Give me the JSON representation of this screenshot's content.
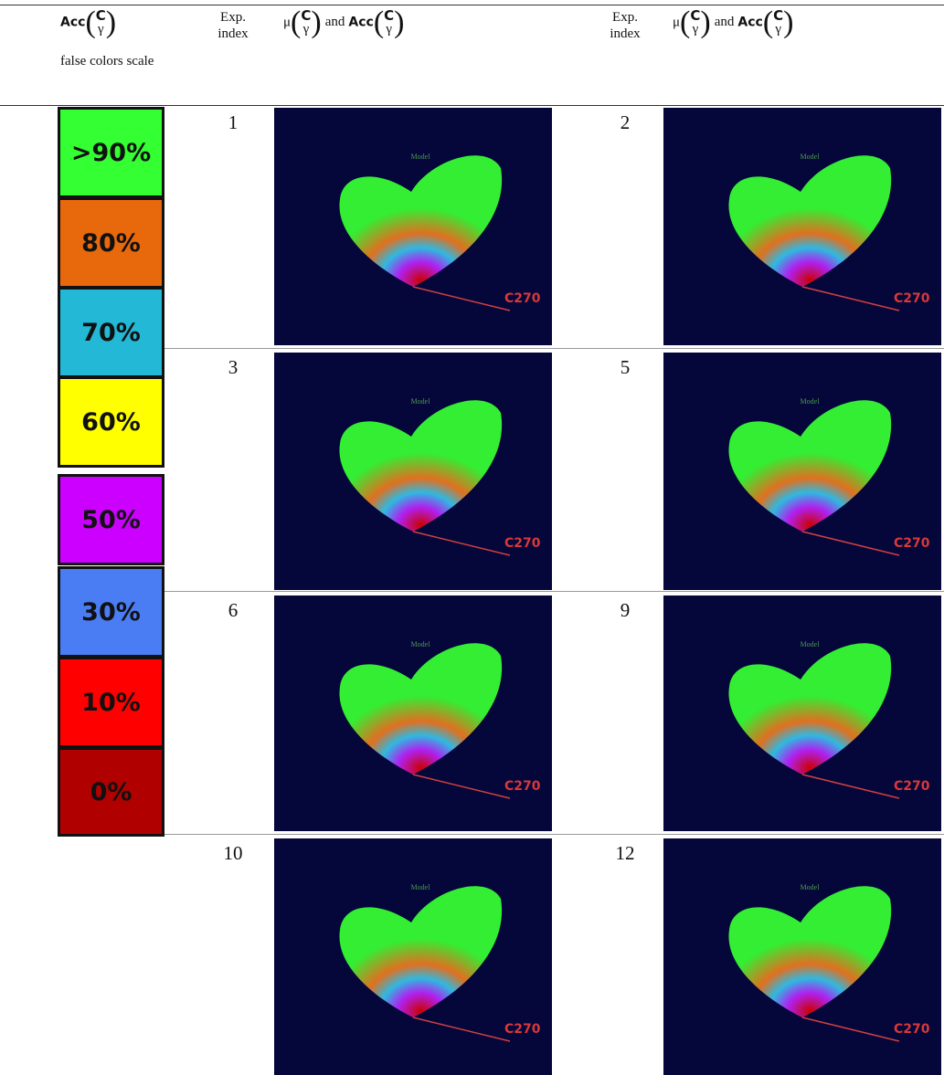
{
  "header": {
    "scale": {
      "acc": "Acc",
      "c": "C",
      "gamma": "γ",
      "caption": "false colors scale"
    },
    "columns": [
      {
        "index": "Exp. index",
        "mu": "μ",
        "and": "and",
        "acc": "Acc",
        "c": "C",
        "gamma": "γ"
      },
      {
        "index": "Exp. index",
        "mu": "μ",
        "and": "and",
        "acc": "Acc",
        "c": "C",
        "gamma": "γ"
      }
    ]
  },
  "scale": [
    {
      "label": ">90%",
      "color": "#33ff33"
    },
    {
      "label": "80%",
      "color": "#e8680c"
    },
    {
      "label": "70%",
      "color": "#22b8d6"
    },
    {
      "label": "60%",
      "color": "#ffff00"
    },
    {
      "label": "50%",
      "color": "#cc00ff"
    },
    {
      "label": "30%",
      "color": "#4a7cf4"
    },
    {
      "label": "10%",
      "color": "#ff0000"
    },
    {
      "label": "0%",
      "color": "#b00000"
    }
  ],
  "rows": [
    [
      {
        "index": "1",
        "model": "Model",
        "axis": "C270"
      },
      {
        "index": "2",
        "model": "Model",
        "axis": "C270"
      }
    ],
    [
      {
        "index": "3",
        "model": "Model",
        "axis": "C270"
      },
      {
        "index": "5",
        "model": "Model",
        "axis": "C270"
      }
    ],
    [
      {
        "index": "6",
        "model": "Model",
        "axis": "C270"
      },
      {
        "index": "9",
        "model": "Model",
        "axis": "C270"
      }
    ],
    [
      {
        "index": "10",
        "model": "Model",
        "axis": "C270"
      },
      {
        "index": "12",
        "model": "Model",
        "axis": "C270"
      }
    ]
  ]
}
